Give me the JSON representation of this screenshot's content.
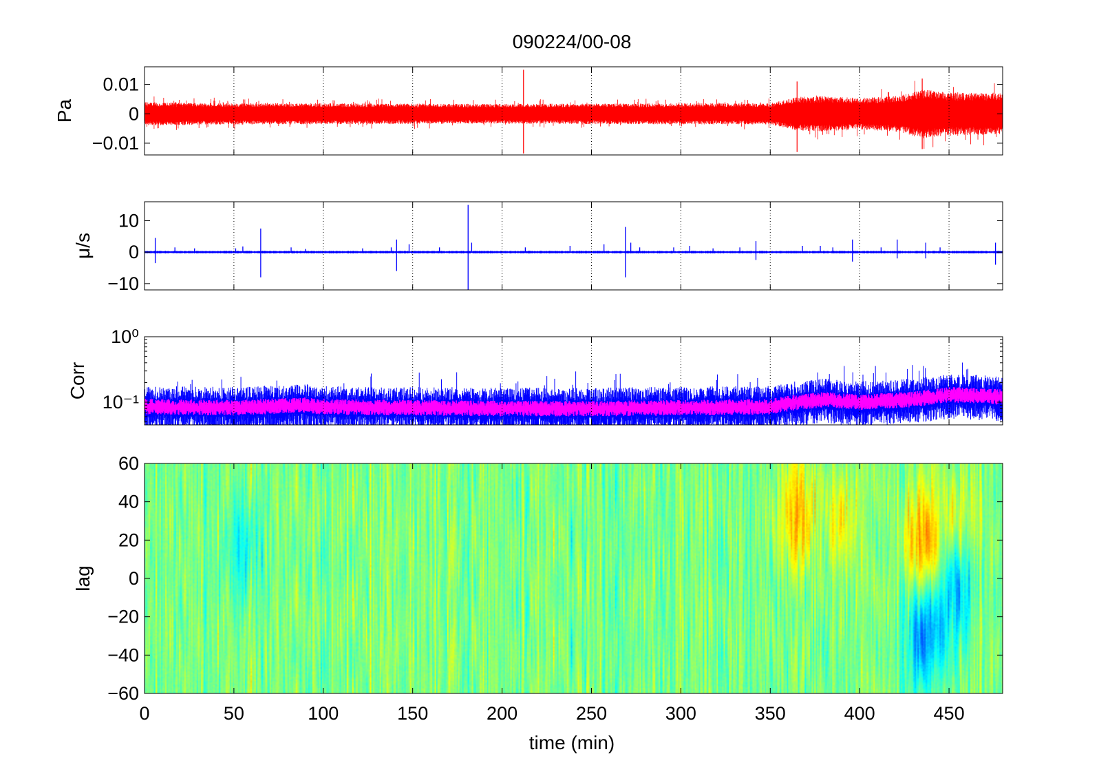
{
  "figure": {
    "title": "090224/00-08",
    "xlabel": "time (min)",
    "xlim": [
      0,
      480
    ],
    "xticks": [
      0,
      50,
      100,
      150,
      200,
      250,
      300,
      350,
      400,
      450
    ],
    "xtick_labels": [
      "0",
      "50",
      "100",
      "150",
      "200",
      "250",
      "300",
      "350",
      "400",
      "450"
    ],
    "grid": "vertical dotted at x ticks"
  },
  "chart_data": [
    {
      "type": "line",
      "ylabel": "Pa",
      "ylim": [
        -0.014,
        0.016
      ],
      "yticks": [
        -0.01,
        0,
        0.01
      ],
      "ytick_labels": [
        "−0.01",
        "0",
        "0.01"
      ],
      "color": "#ff0000",
      "envelope": {
        "x": [
          0,
          50,
          100,
          150,
          200,
          250,
          300,
          350,
          365,
          380,
          400,
          420,
          435,
          450,
          480
        ],
        "amplitude": [
          0.0033,
          0.003,
          0.003,
          0.0029,
          0.0028,
          0.0029,
          0.003,
          0.003,
          0.0048,
          0.005,
          0.0045,
          0.005,
          0.007,
          0.006,
          0.006
        ]
      },
      "spikes": [
        {
          "x": 212,
          "value": 0.015
        },
        {
          "x": 212,
          "value": -0.0135
        },
        {
          "x": 365,
          "value": 0.011
        },
        {
          "x": 365,
          "value": -0.013
        },
        {
          "x": 435,
          "value": 0.012
        },
        {
          "x": 435,
          "value": -0.012
        }
      ]
    },
    {
      "type": "line",
      "ylabel": "μ/s",
      "ylim": [
        -12,
        16
      ],
      "yticks": [
        -10,
        0,
        10
      ],
      "ytick_labels": [
        "−10",
        "0",
        "10"
      ],
      "color": "#0000ff",
      "baseline_noise": 0.35,
      "spikes": [
        {
          "x": 6,
          "value": 4.5
        },
        {
          "x": 6,
          "value": -3.5
        },
        {
          "x": 17,
          "value": 1.5
        },
        {
          "x": 28,
          "value": 1.2
        },
        {
          "x": 51,
          "value": 1.2
        },
        {
          "x": 55,
          "value": 1.8
        },
        {
          "x": 65,
          "value": 7.5
        },
        {
          "x": 65,
          "value": -8
        },
        {
          "x": 82,
          "value": 1.5
        },
        {
          "x": 90,
          "value": 1
        },
        {
          "x": 122,
          "value": 1.2
        },
        {
          "x": 138,
          "value": 1.5
        },
        {
          "x": 141,
          "value": 4
        },
        {
          "x": 141,
          "value": -6
        },
        {
          "x": 148,
          "value": 2.5
        },
        {
          "x": 165,
          "value": 1.5
        },
        {
          "x": 181,
          "value": 15
        },
        {
          "x": 181,
          "value": -12
        },
        {
          "x": 183,
          "value": 3
        },
        {
          "x": 213,
          "value": 1.5
        },
        {
          "x": 238,
          "value": 2
        },
        {
          "x": 257,
          "value": 2.5
        },
        {
          "x": 269,
          "value": 8
        },
        {
          "x": 269,
          "value": -8
        },
        {
          "x": 272,
          "value": 3
        },
        {
          "x": 277,
          "value": 1.5
        },
        {
          "x": 296,
          "value": 1.5
        },
        {
          "x": 305,
          "value": 2
        },
        {
          "x": 318,
          "value": 1.2
        },
        {
          "x": 333,
          "value": 1.5
        },
        {
          "x": 342,
          "value": 3.5
        },
        {
          "x": 342,
          "value": -2.5
        },
        {
          "x": 368,
          "value": 2
        },
        {
          "x": 378,
          "value": 2
        },
        {
          "x": 385,
          "value": 1.5
        },
        {
          "x": 396,
          "value": 4
        },
        {
          "x": 396,
          "value": -3
        },
        {
          "x": 412,
          "value": 1.5
        },
        {
          "x": 421,
          "value": 4
        },
        {
          "x": 421,
          "value": -2
        },
        {
          "x": 437,
          "value": 3
        },
        {
          "x": 437,
          "value": -2
        },
        {
          "x": 445,
          "value": 1.5
        },
        {
          "x": 476,
          "value": 3
        },
        {
          "x": 476,
          "value": -4
        }
      ]
    },
    {
      "type": "line",
      "ylabel": "Corr",
      "yscale": "log",
      "ylim": [
        0.045,
        1
      ],
      "yticks": [
        0.1,
        1
      ],
      "ytick_labels": [
        "10⁻¹",
        "10⁰"
      ],
      "series_colors": [
        "#0000ff",
        "#ff00ff"
      ],
      "level": {
        "x": [
          0,
          50,
          90,
          100,
          150,
          200,
          250,
          300,
          350,
          365,
          380,
          400,
          430,
          450,
          480
        ],
        "value": [
          0.085,
          0.082,
          0.09,
          0.085,
          0.082,
          0.08,
          0.08,
          0.082,
          0.085,
          0.1,
          0.11,
          0.1,
          0.11,
          0.13,
          0.12
        ]
      }
    },
    {
      "type": "heatmap",
      "ylabel": "lag",
      "ylim": [
        -60,
        60
      ],
      "yticks": [
        -60,
        -40,
        -20,
        0,
        20,
        40,
        60
      ],
      "ytick_labels": [
        "−60",
        "−40",
        "−20",
        "0",
        "20",
        "40",
        "60"
      ],
      "colormap": "jet",
      "base_level": 0.5,
      "features": [
        {
          "x": 55,
          "lag": 15,
          "level": 0.38
        },
        {
          "x": 365,
          "lag": 35,
          "level": 0.7
        },
        {
          "x": 390,
          "lag": 30,
          "level": 0.62
        },
        {
          "x": 435,
          "lag": 20,
          "level": 0.72
        },
        {
          "x": 437,
          "lag": -30,
          "level": 0.25
        },
        {
          "x": 455,
          "lag": 25,
          "level": 0.6
        },
        {
          "x": 455,
          "lag": -5,
          "level": 0.3
        }
      ]
    }
  ]
}
